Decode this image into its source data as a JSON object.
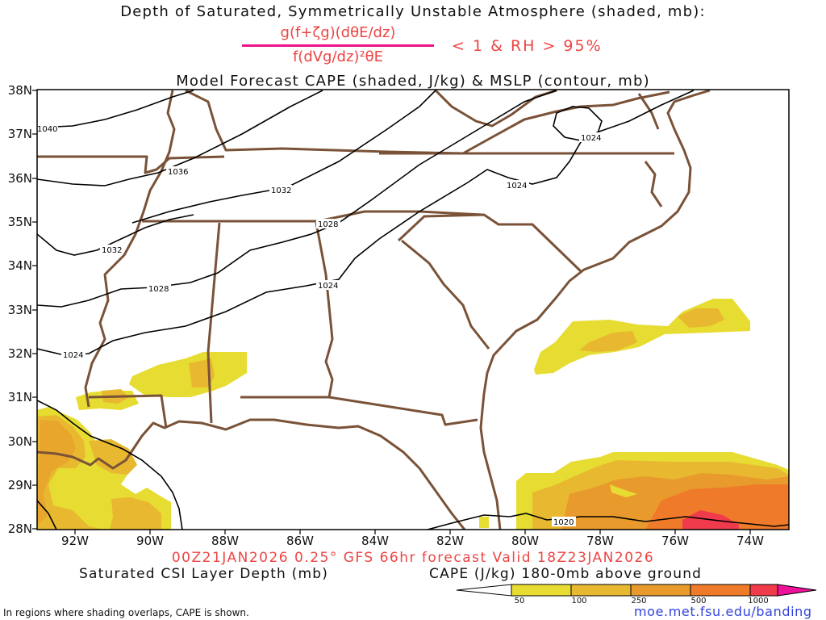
{
  "title": {
    "line1": "Depth of Saturated, Symmetrically Unstable Atmosphere (shaded, mb):",
    "numerator": "g(f+ζg)(dθE/dz)",
    "denominator": "f(dVg/dz)²θE",
    "condition": "< 1 & RH > 95%",
    "line3": "Model Forecast CAPE (shaded, J/kg) & MSLP (contour, mb)"
  },
  "map": {
    "lat_labels": [
      "38N",
      "37N",
      "36N",
      "35N",
      "34N",
      "33N",
      "32N",
      "31N",
      "30N",
      "29N",
      "28N"
    ],
    "lon_labels": [
      "92W",
      "90W",
      "88W",
      "86W",
      "84W",
      "82W",
      "80W",
      "78W",
      "76W",
      "74W"
    ],
    "lat_range": [
      28,
      38
    ],
    "lon_range": [
      -93,
      -73
    ],
    "mslp_contour_labels": [
      "1040",
      "1036",
      "1032",
      "1032",
      "1028",
      "1028",
      "1024",
      "1024",
      "1024",
      "1024",
      "1020"
    ],
    "colors": {
      "state_borders": "#7a5238",
      "contours": "#000000",
      "cape_50": "#e7dc32",
      "cape_100": "#e8b830",
      "cape_250": "#e89a2c",
      "cape_500": "#ef7a2a",
      "cape_1000": "#ef3b4b"
    }
  },
  "footer": {
    "valid": "00Z21JAN2026 0.25° GFS 66hr forecast Valid 18Z23JAN2026",
    "left_label": "Saturated CSI Layer Depth (mb)",
    "right_label": "CAPE (J/kg) 180-0mb above ground",
    "colorbar_ticks": [
      "50",
      "100",
      "250",
      "500",
      "1000"
    ],
    "note": "In regions where shading overlaps, CAPE is shown.",
    "url": "moe.met.fsu.edu/banding"
  }
}
